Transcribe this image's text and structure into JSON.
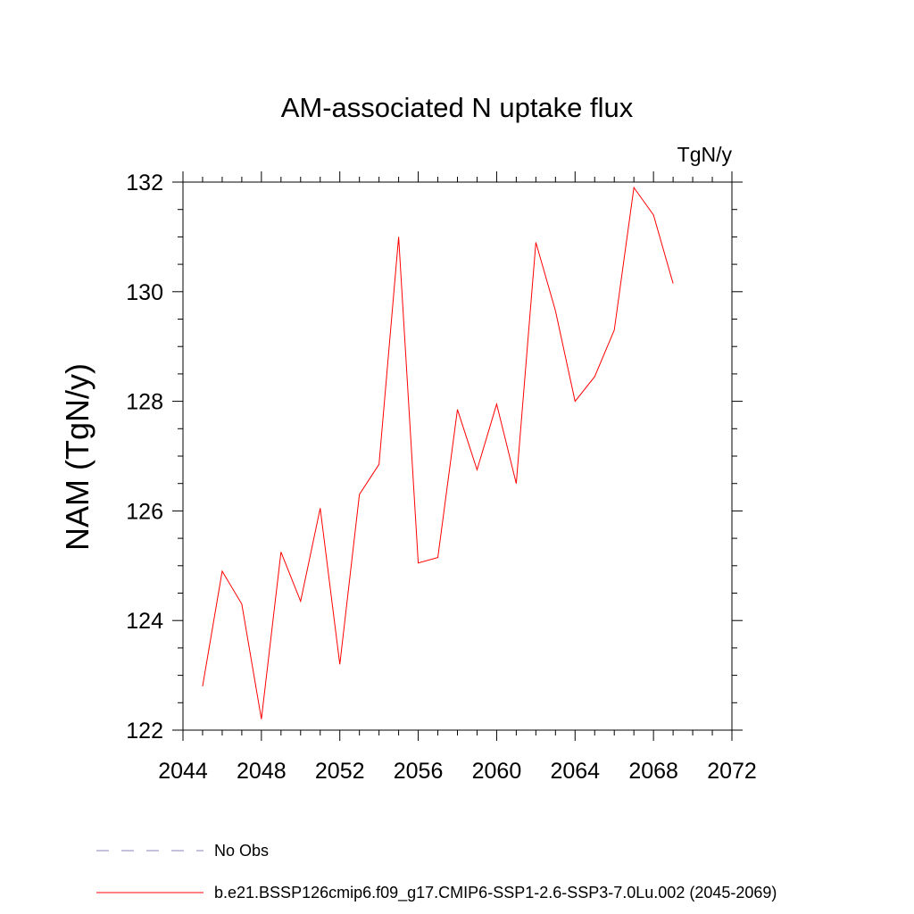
{
  "chart_data": {
    "type": "line",
    "title": "AM-associated N uptake flux",
    "units": "TgN/y",
    "xlabel": "",
    "ylabel": "NAM  (TgN/y)",
    "xlim": [
      2044,
      2072
    ],
    "ylim": [
      122,
      132
    ],
    "x_ticks": [
      2044,
      2048,
      2052,
      2056,
      2060,
      2064,
      2068,
      2072
    ],
    "y_ticks": [
      122,
      124,
      126,
      128,
      130,
      132
    ],
    "grid": false,
    "legend_position": "bottom",
    "series": [
      {
        "name": "b.e21.BSSP126cmip6.f09_g17.CMIP6-SSP1-2.6-SSP3-7.0Lu.002 (2045-2069)",
        "color": "#ff0000",
        "style": "solid",
        "x": [
          2045,
          2046,
          2047,
          2048,
          2049,
          2050,
          2051,
          2052,
          2053,
          2054,
          2055,
          2056,
          2057,
          2058,
          2059,
          2060,
          2061,
          2062,
          2063,
          2064,
          2065,
          2066,
          2067,
          2068,
          2069
        ],
        "y": [
          122.8,
          124.9,
          124.3,
          122.2,
          125.25,
          124.35,
          126.05,
          123.2,
          126.3,
          126.85,
          131.0,
          125.05,
          125.15,
          127.85,
          126.75,
          127.95,
          126.5,
          130.9,
          129.65,
          128.0,
          128.45,
          129.3,
          131.9,
          131.4,
          130.15
        ]
      },
      {
        "name": "No Obs",
        "color": "#8a84b8",
        "style": "dashed",
        "x": [],
        "y": []
      }
    ]
  }
}
